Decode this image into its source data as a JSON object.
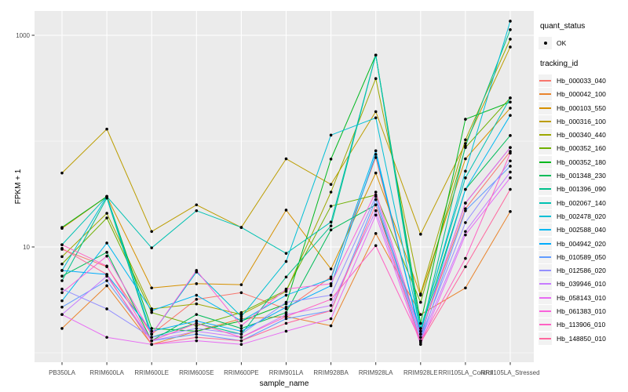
{
  "figure": {
    "background": "#ffffff",
    "panel_background": "#ebebeb",
    "gridline_color": "#ffffff",
    "axis_text_color": "#4d4d4d",
    "tick_color": "#333333",
    "legend_key_background": "#f2f2f2",
    "point_color": "#000000"
  },
  "axes": {
    "x": {
      "title": "sample_name"
    },
    "y": {
      "title": "FPKM + 1",
      "tick_labels": [
        "1000",
        "10"
      ],
      "tick_values": [
        1000,
        10
      ],
      "minor_grid_values": [
        100,
        1
      ],
      "scale": "log10"
    }
  },
  "legend": {
    "quant_status": {
      "title": "quant_status",
      "items": [
        {
          "label": "OK",
          "symbol": "black-point"
        }
      ]
    },
    "tracking_id": {
      "title": "tracking_id"
    }
  },
  "chart_data": {
    "type": "line",
    "title": "",
    "xlabel": "sample_name",
    "ylabel": "FPKM + 1",
    "y_scale": "log10",
    "y_ticks": [
      10,
      1000
    ],
    "ylim": [
      0.8,
      1700
    ],
    "grid": true,
    "legend_position": "right",
    "marker": "black point (quant_status = OK)",
    "categories": [
      "PB350LA",
      "RRIM600LA",
      "RRIM600LE",
      "RRIM600SE",
      "RRIM600PE",
      "RRIM901LA",
      "RRIM928BA",
      "RRIM928LA",
      "RRIM928LE",
      "RRII105LA_Control",
      "RRII105LA_Stressed"
    ],
    "series": [
      {
        "name": "Hb_000033_040",
        "color": "#F8766D",
        "values": [
          9.5,
          6.5,
          1.5,
          3.2,
          3.7,
          2.6,
          5.2,
          70,
          1.5,
          23,
          80
        ]
      },
      {
        "name": "Hb_000042_100",
        "color": "#E9842C",
        "values": [
          1.7,
          4.3,
          1.2,
          1.6,
          2.1,
          2.2,
          1.8,
          13.4,
          2.3,
          4.1,
          21.6
        ]
      },
      {
        "name": "Hb_000103_550",
        "color": "#D69100",
        "values": [
          15,
          30,
          4.1,
          4.5,
          4.4,
          22.3,
          6.2,
          50,
          3.5,
          68,
          205
        ]
      },
      {
        "name": "Hb_000316_100",
        "color": "#BC9D00",
        "values": [
          50,
          130,
          14,
          25,
          15.3,
          68,
          39,
          190,
          13.2,
          95,
          775
        ]
      },
      {
        "name": "Hb_000340_440",
        "color": "#9CA700",
        "values": [
          8.1,
          20.8,
          2.6,
          2.9,
          2.3,
          3.8,
          33,
          390,
          3.6,
          103,
          920
        ]
      },
      {
        "name": "Hb_000352_160",
        "color": "#6FB000",
        "values": [
          6.9,
          18.8,
          2.4,
          1.8,
          2.4,
          3.9,
          24.3,
          31,
          3.0,
          87,
          256
        ]
      },
      {
        "name": "Hb_000352_180",
        "color": "#00B81F",
        "values": [
          15.3,
          30,
          1.7,
          1.6,
          2.0,
          2.9,
          67.7,
          650,
          1.9,
          161,
          234
        ]
      },
      {
        "name": "Hb_001348_230",
        "color": "#00BC59",
        "values": [
          5.3,
          8.9,
          1.3,
          2.3,
          1.7,
          2.4,
          14.5,
          25,
          1.6,
          35,
          113
        ]
      },
      {
        "name": "Hb_001396_090",
        "color": "#00C08B",
        "values": [
          4.8,
          29,
          1.4,
          1.9,
          1.5,
          5.2,
          15.8,
          650,
          1.5,
          90,
          1130
        ]
      },
      {
        "name": "Hb_002067_140",
        "color": "#00C1B2",
        "values": [
          10.5,
          30,
          9.8,
          22,
          15.3,
          8.7,
          17.2,
          650,
          1.7,
          45,
          256
        ]
      },
      {
        "name": "Hb_002478_020",
        "color": "#00BFD5",
        "values": [
          6.0,
          30,
          1.5,
          5.8,
          2.2,
          7.3,
          114,
          166,
          1.6,
          52,
          1360
        ]
      },
      {
        "name": "Hb_002588_040",
        "color": "#00B8F1",
        "values": [
          3.1,
          10.9,
          2.5,
          3.5,
          2.0,
          3.5,
          5.0,
          81,
          1.4,
          35,
          175
        ]
      },
      {
        "name": "Hb_004942_020",
        "color": "#00ACFC",
        "values": [
          6.0,
          5.5,
          1.6,
          2.0,
          1.6,
          2.7,
          4.3,
          75,
          1.5,
          26,
          87
        ]
      },
      {
        "name": "Hb_010589_050",
        "color": "#619CFF",
        "values": [
          2.7,
          4.8,
          1.3,
          1.5,
          1.3,
          2.1,
          2.5,
          28,
          1.3,
          22,
          58
        ]
      },
      {
        "name": "Hb_012586_020",
        "color": "#9590FF",
        "values": [
          4.0,
          2.6,
          1.4,
          1.7,
          1.5,
          3.0,
          3.5,
          30,
          1.4,
          17,
          65
        ]
      },
      {
        "name": "Hb_039946_010",
        "color": "#C77CFF",
        "values": [
          2.3,
          5.3,
          1.3,
          1.6,
          1.4,
          2.3,
          2.8,
          22,
          1.3,
          14,
          51
        ]
      },
      {
        "name": "Hb_058143_010",
        "color": "#E76BF3",
        "values": [
          2.3,
          1.4,
          1.2,
          1.3,
          1.2,
          1.6,
          2.1,
          20,
          1.2,
          13,
          45
        ]
      },
      {
        "name": "Hb_061383_010",
        "color": "#FA62DB",
        "values": [
          3.7,
          8.2,
          1.5,
          6.0,
          1.8,
          4.0,
          4.5,
          33,
          1.5,
          26,
          87
        ]
      },
      {
        "name": "Hb_113906_010",
        "color": "#FF61C3",
        "values": [
          10.5,
          6.6,
          1.3,
          1.9,
          1.4,
          2.2,
          3.2,
          10.3,
          1.3,
          7.8,
          77
        ]
      },
      {
        "name": "Hb_148850_010",
        "color": "#FF689E",
        "values": [
          9.7,
          5.5,
          1.2,
          1.4,
          1.3,
          1.9,
          2.5,
          25,
          1.25,
          6.5,
          35
        ]
      }
    ]
  }
}
